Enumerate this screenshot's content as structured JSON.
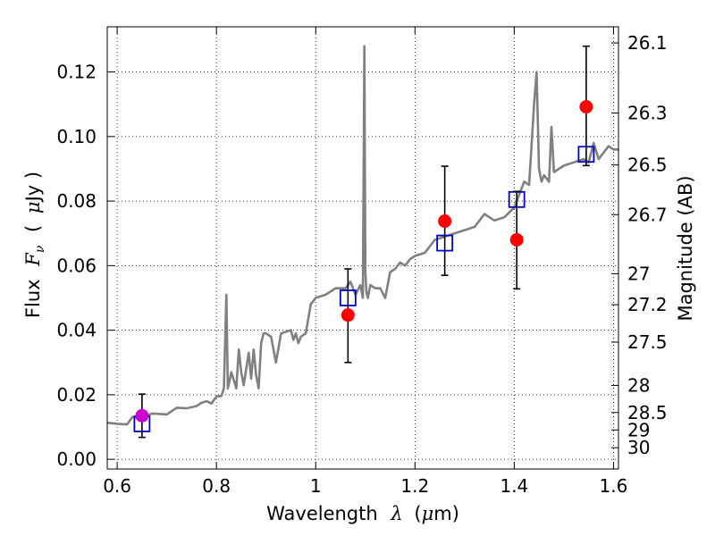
{
  "chart_data": {
    "type": "scatter",
    "title": "",
    "xlabel": {
      "main": "Wavelength",
      "symbol": "λ",
      "unit_open": "(",
      "unit_mu": "μ",
      "unit_rest": "m)"
    },
    "ylabel": {
      "main": "Flux",
      "symbol": "F",
      "subscript": "ν",
      "unit_open": "(",
      "unit_mu": "μ",
      "unit_rest": "Jy )"
    },
    "y2label": "Magnitude (AB)",
    "xlim": [
      0.58,
      1.61
    ],
    "ylim": [
      -0.003,
      0.134
    ],
    "grid": true,
    "xticks": [
      {
        "v": 0.6,
        "label": "0.6"
      },
      {
        "v": 0.8,
        "label": "0.8"
      },
      {
        "v": 1.0,
        "label": "1"
      },
      {
        "v": 1.2,
        "label": "1.2"
      },
      {
        "v": 1.4,
        "label": "1.4"
      },
      {
        "v": 1.6,
        "label": "1.6"
      }
    ],
    "yticks": [
      {
        "v": 0.0,
        "label": "0.00"
      },
      {
        "v": 0.02,
        "label": "0.02"
      },
      {
        "v": 0.04,
        "label": "0.04"
      },
      {
        "v": 0.06,
        "label": "0.06"
      },
      {
        "v": 0.08,
        "label": "0.08"
      },
      {
        "v": 0.1,
        "label": "0.10"
      },
      {
        "v": 0.12,
        "label": "0.12"
      }
    ],
    "y2ticks": [
      {
        "label": "26.1",
        "flux": 0.129
      },
      {
        "label": "26.3",
        "flux": 0.1073
      },
      {
        "label": "26.5",
        "flux": 0.0912
      },
      {
        "label": "26.7",
        "flux": 0.0758
      },
      {
        "label": "27",
        "flux": 0.0575
      },
      {
        "label": "27.2",
        "flux": 0.0479
      },
      {
        "label": "27.5",
        "flux": 0.0363
      },
      {
        "label": "28",
        "flux": 0.0229
      },
      {
        "label": "28.5",
        "flux": 0.0145
      },
      {
        "label": "29",
        "flux": 0.0091
      },
      {
        "label": "30",
        "flux": 0.0036
      }
    ],
    "series": [
      {
        "kind": "spectrum",
        "color": "#808080",
        "x": [
          0.58,
          0.6,
          0.62,
          0.63,
          0.64,
          0.65,
          0.66,
          0.67,
          0.68,
          0.7,
          0.72,
          0.74,
          0.76,
          0.77,
          0.78,
          0.79,
          0.8,
          0.81,
          0.815,
          0.82,
          0.823,
          0.826,
          0.83,
          0.84,
          0.845,
          0.85,
          0.855,
          0.86,
          0.865,
          0.87,
          0.875,
          0.88,
          0.885,
          0.89,
          0.895,
          0.9,
          0.91,
          0.92,
          0.93,
          0.94,
          0.95,
          0.955,
          0.96,
          0.965,
          0.97,
          0.98,
          0.99,
          1.0,
          1.02,
          1.04,
          1.06,
          1.07,
          1.08,
          1.09,
          1.095,
          1.098,
          1.1,
          1.102,
          1.105,
          1.11,
          1.12,
          1.13,
          1.14,
          1.15,
          1.16,
          1.17,
          1.18,
          1.19,
          1.2,
          1.22,
          1.24,
          1.26,
          1.28,
          1.3,
          1.32,
          1.34,
          1.36,
          1.38,
          1.4,
          1.42,
          1.43,
          1.44,
          1.445,
          1.45,
          1.455,
          1.46,
          1.47,
          1.475,
          1.48,
          1.49,
          1.5,
          1.52,
          1.54,
          1.55,
          1.56,
          1.57,
          1.58,
          1.59,
          1.6,
          1.61
        ],
        "y": [
          0.0113,
          0.011,
          0.0108,
          0.013,
          0.0131,
          0.014,
          0.0135,
          0.0142,
          0.0141,
          0.0139,
          0.016,
          0.0158,
          0.0165,
          0.0175,
          0.018,
          0.0173,
          0.0195,
          0.0196,
          0.022,
          0.051,
          0.022,
          0.024,
          0.027,
          0.022,
          0.034,
          0.027,
          0.023,
          0.028,
          0.033,
          0.025,
          0.034,
          0.026,
          0.022,
          0.036,
          0.039,
          0.039,
          0.038,
          0.03,
          0.039,
          0.0395,
          0.04,
          0.037,
          0.039,
          0.036,
          0.038,
          0.039,
          0.048,
          0.05,
          0.051,
          0.053,
          0.053,
          0.055,
          0.051,
          0.054,
          0.05,
          0.128,
          0.058,
          0.052,
          0.05,
          0.054,
          0.053,
          0.053,
          0.05,
          0.058,
          0.059,
          0.061,
          0.06,
          0.062,
          0.063,
          0.064,
          0.068,
          0.069,
          0.07,
          0.071,
          0.072,
          0.076,
          0.074,
          0.075,
          0.078,
          0.086,
          0.085,
          0.11,
          0.12,
          0.09,
          0.086,
          0.088,
          0.086,
          0.103,
          0.089,
          0.09,
          0.091,
          0.092,
          0.093,
          0.092,
          0.098,
          0.093,
          0.095,
          0.097,
          0.096,
          0.096
        ]
      },
      {
        "kind": "model",
        "color": "#0000cc",
        "x": [
          0.65,
          1.065,
          1.26,
          1.405,
          1.545
        ],
        "y": [
          0.011,
          0.05,
          0.067,
          0.0805,
          0.0945
        ]
      },
      {
        "kind": "observed",
        "color": "#ff0000",
        "x": [
          1.065,
          1.26,
          1.405,
          1.545
        ],
        "y": [
          0.0447,
          0.0738,
          0.068,
          0.1092
        ],
        "err_low": [
          0.0147,
          0.0168,
          0.0152,
          0.0182
        ],
        "err_high": [
          0.0143,
          0.017,
          0.015,
          0.0188
        ]
      },
      {
        "kind": "observed-special",
        "color": "#cc00cc",
        "x": [
          0.65
        ],
        "y": [
          0.0135
        ],
        "err_low": [
          0.0067
        ],
        "err_high": [
          0.0067
        ]
      }
    ]
  }
}
